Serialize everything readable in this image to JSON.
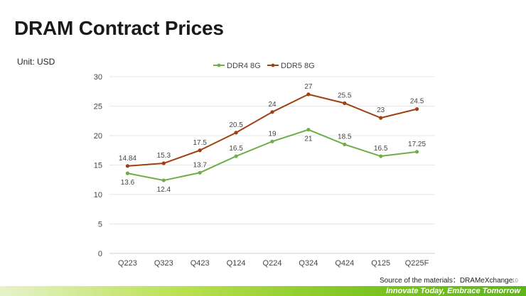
{
  "slide": {
    "title": "DRAM Contract Prices",
    "unit": "Unit: USD",
    "source": "Source of the materials：DRAMeXchange",
    "page_number": "10",
    "slogan": "Innovate Today, Embrace Tomorrow"
  },
  "colors": {
    "ddr4": "#70ad47",
    "ddr5": "#a0400f",
    "grid": "#e6e6e6",
    "axis_text": "#444444",
    "label_text": "#444444"
  },
  "chart_data": {
    "type": "line",
    "title": "",
    "xlabel": "",
    "ylabel": "",
    "categories": [
      "Q223",
      "Q323",
      "Q423",
      "Q124",
      "Q224",
      "Q324",
      "Q424",
      "Q125",
      "Q225F"
    ],
    "series": [
      {
        "name": "DDR4 8G",
        "color_key": "ddr4",
        "values": [
          13.6,
          12.4,
          13.7,
          16.5,
          19,
          21,
          18.5,
          16.5,
          17.25
        ],
        "labels": [
          "13.6",
          "12.4",
          "13.7",
          "16.5",
          "19",
          "21",
          "18.5",
          "16.5",
          "17.25"
        ],
        "label_side": [
          "below",
          "below",
          "above",
          "above",
          "above",
          "below",
          "above",
          "above",
          "above"
        ]
      },
      {
        "name": "DDR5 8G",
        "color_key": "ddr5",
        "values": [
          14.84,
          15.3,
          17.5,
          20.5,
          24,
          27,
          25.5,
          23,
          24.5
        ],
        "labels": [
          "14.84",
          "15.3",
          "17.5",
          "20.5",
          "24",
          "27",
          "25.5",
          "23",
          "24.5"
        ],
        "label_side": [
          "above",
          "above",
          "above",
          "above",
          "above",
          "above",
          "above",
          "above",
          "above"
        ]
      }
    ],
    "ylim": [
      0,
      30
    ],
    "yticks": [
      0,
      5,
      10,
      15,
      20,
      25,
      30
    ],
    "grid": true,
    "legend": "top-center"
  }
}
